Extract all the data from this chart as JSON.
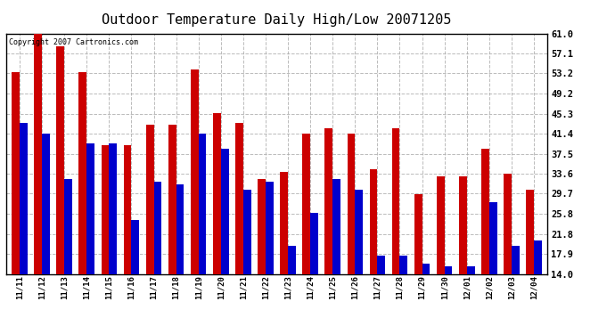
{
  "title": "Outdoor Temperature Daily High/Low 20071205",
  "copyright_text": "Copyright 2007 Cartronics.com",
  "dates": [
    "11/11",
    "11/12",
    "11/13",
    "11/14",
    "11/15",
    "11/16",
    "11/17",
    "11/18",
    "11/19",
    "11/20",
    "11/21",
    "11/22",
    "11/23",
    "11/24",
    "11/25",
    "11/26",
    "11/27",
    "11/28",
    "11/29",
    "11/30",
    "12/01",
    "12/02",
    "12/03",
    "12/04"
  ],
  "highs": [
    53.5,
    61.0,
    58.5,
    53.5,
    39.2,
    39.2,
    43.2,
    43.2,
    54.0,
    45.5,
    43.5,
    32.5,
    34.0,
    41.5,
    42.5,
    41.5,
    34.5,
    42.5,
    29.5,
    33.0,
    33.0,
    38.5,
    33.5,
    30.5
  ],
  "lows": [
    43.5,
    41.5,
    32.5,
    39.5,
    39.5,
    24.5,
    32.0,
    31.5,
    41.5,
    38.5,
    30.5,
    32.0,
    19.5,
    26.0,
    32.5,
    30.5,
    17.5,
    17.5,
    16.0,
    15.5,
    15.5,
    28.0,
    19.5,
    20.5
  ],
  "high_color": "#cc0000",
  "low_color": "#0000cc",
  "background_color": "#ffffff",
  "plot_bg_color": "#ffffff",
  "grid_color": "#aaaaaa",
  "title_fontsize": 11,
  "ylim_min": 14.0,
  "ylim_max": 61.0,
  "yticks": [
    14.0,
    17.9,
    21.8,
    25.8,
    29.7,
    33.6,
    37.5,
    41.4,
    45.3,
    49.2,
    53.2,
    57.1,
    61.0
  ]
}
